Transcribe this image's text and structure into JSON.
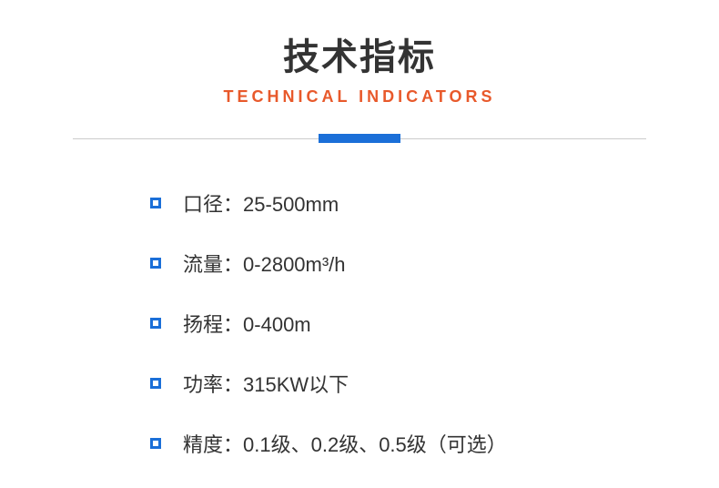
{
  "header": {
    "title_cn": "技术指标",
    "title_en": "TECHNICAL INDICATORS"
  },
  "colors": {
    "title_cn_color": "#333333",
    "title_en_color": "#e8592b",
    "divider_line_color": "#cccccc",
    "accent_color": "#1b6fd8",
    "text_color": "#333333",
    "background_color": "#ffffff"
  },
  "typography": {
    "title_cn_fontsize": 40,
    "title_en_fontsize": 18,
    "title_en_letter_spacing": 4,
    "spec_fontsize": 22
  },
  "specs": [
    {
      "label": "口径",
      "value": "25-500mm"
    },
    {
      "label": "流量",
      "value": "0-2800m³/h"
    },
    {
      "label": "扬程",
      "value": "0-400m"
    },
    {
      "label": "功率",
      "value": "315KW以下"
    },
    {
      "label": "精度",
      "value": "0.1级、0.2级、0.5级（可选）"
    }
  ]
}
